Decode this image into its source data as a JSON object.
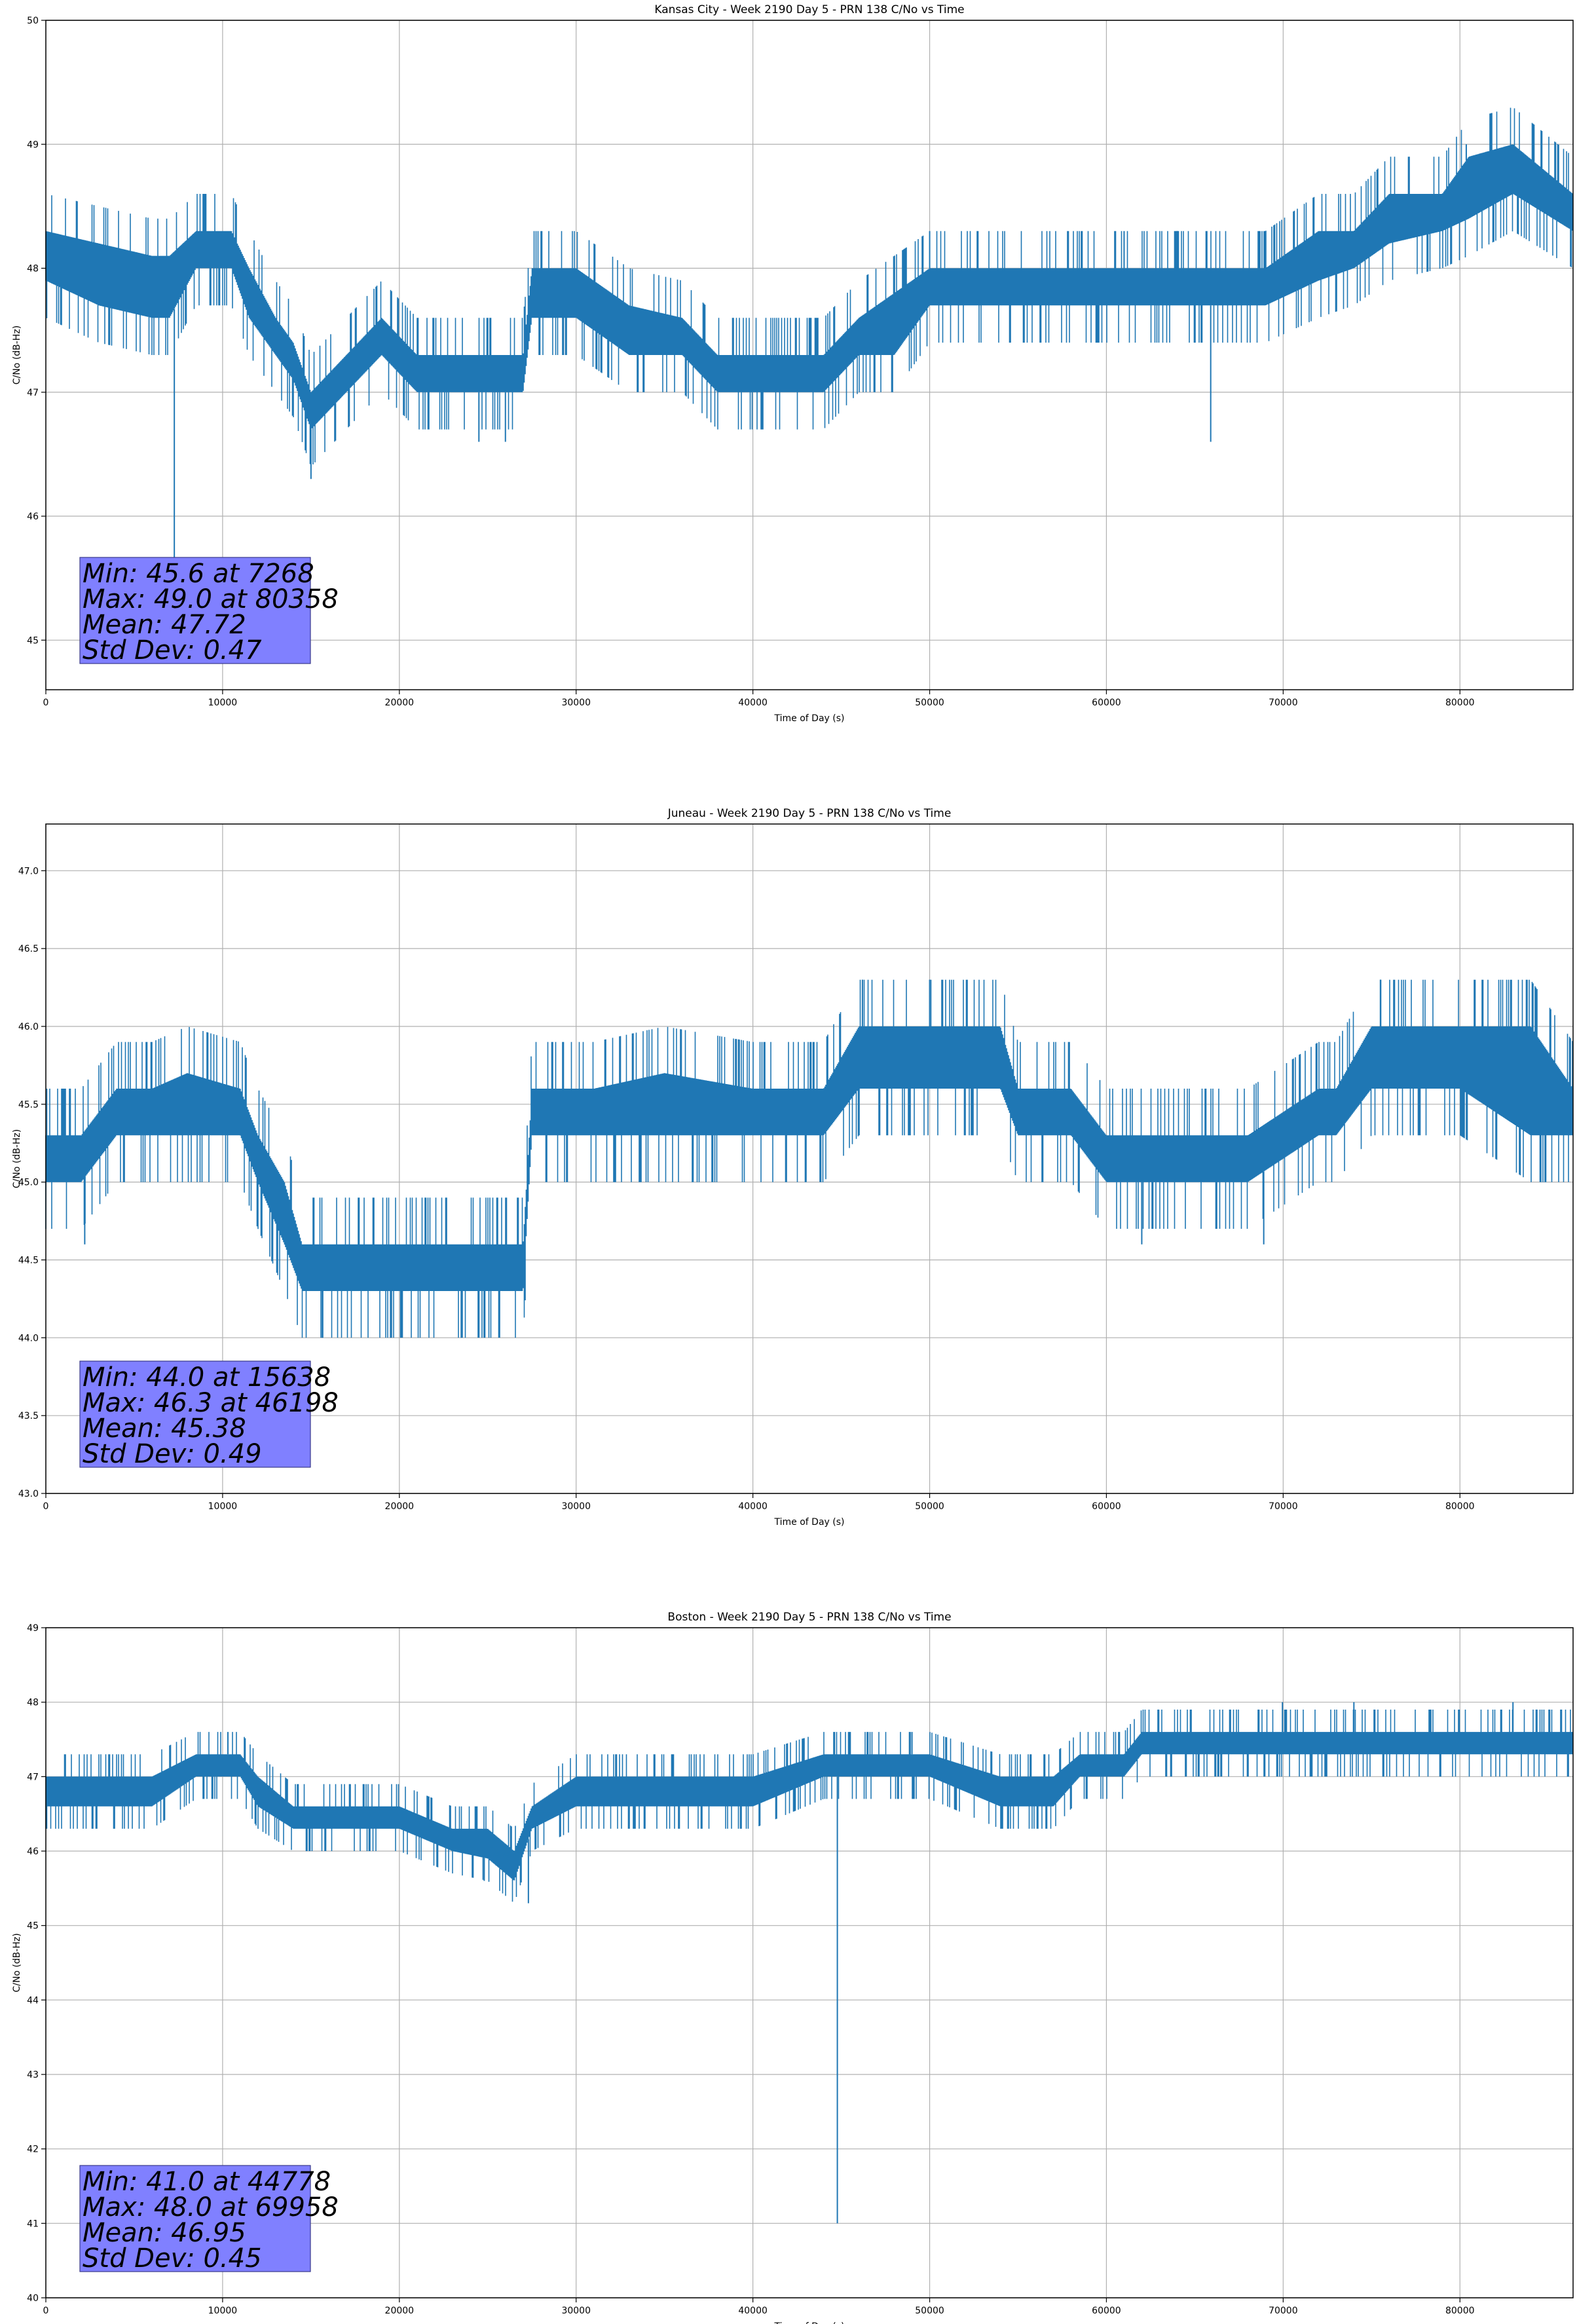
{
  "chart_data": [
    {
      "type": "line",
      "title": "Kansas City - Week 2190 Day 5 - PRN 138 C/No vs Time",
      "xlabel": "Time of Day (s)",
      "ylabel": "C/No (dB-Hz)",
      "xlim": [
        0,
        86400
      ],
      "ylim": [
        44.6,
        50
      ],
      "xticks": [
        0,
        10000,
        20000,
        30000,
        40000,
        50000,
        60000,
        70000,
        80000
      ],
      "yticks": [
        45,
        46,
        47,
        48,
        49,
        50
      ],
      "ytick_labels": [
        "45",
        "46",
        "47",
        "48",
        "49",
        "50"
      ],
      "grid": true,
      "color": "#1f77b4",
      "series": [
        {
          "x": [
            0,
            3000,
            6000,
            7000,
            8500,
            10500,
            11500,
            13000,
            14000,
            15000,
            17000,
            19000,
            21000,
            23000,
            25000,
            27000,
            27500,
            30000,
            33000,
            36000,
            38000,
            42000,
            44000,
            46000,
            48000,
            50000,
            55000,
            60000,
            65000,
            69000,
            72000,
            74000,
            76000,
            79000,
            80500,
            83000,
            86400
          ],
          "y_low": [
            47.9,
            47.7,
            47.6,
            47.6,
            48.0,
            48.0,
            47.6,
            47.3,
            47.1,
            46.7,
            47.0,
            47.3,
            47.0,
            47.0,
            47.0,
            47.0,
            47.6,
            47.6,
            47.3,
            47.3,
            47.0,
            47.0,
            47.0,
            47.3,
            47.3,
            47.7,
            47.7,
            47.7,
            47.7,
            47.7,
            47.9,
            48.0,
            48.2,
            48.3,
            48.4,
            48.6,
            48.3
          ],
          "y_high": [
            48.3,
            48.2,
            48.1,
            48.1,
            48.3,
            48.3,
            48.0,
            47.6,
            47.4,
            47.0,
            47.3,
            47.6,
            47.3,
            47.3,
            47.3,
            47.3,
            48.0,
            48.0,
            47.7,
            47.6,
            47.3,
            47.3,
            47.3,
            47.6,
            47.8,
            48.0,
            48.0,
            48.0,
            48.0,
            48.0,
            48.3,
            48.3,
            48.6,
            48.6,
            48.9,
            49.0,
            48.6
          ],
          "spikes": [
            {
              "x": 7268,
              "y": 45.6
            },
            {
              "x": 15000,
              "y": 46.3
            },
            {
              "x": 65900,
              "y": 46.6
            },
            {
              "x": 24500,
              "y": 46.6
            },
            {
              "x": 26000,
              "y": 46.6
            },
            {
              "x": 50000,
              "y": 48.3
            },
            {
              "x": 80358,
              "y": 49.0
            },
            {
              "x": 61000,
              "y": 48.3
            },
            {
              "x": 64000,
              "y": 48.3
            }
          ]
        }
      ],
      "stats": [
        "Min: 45.6 at 7268",
        "Max: 49.0 at 80358",
        "Mean: 47.72",
        "Std Dev: 0.47"
      ]
    },
    {
      "type": "line",
      "title": "Juneau - Week 2190 Day 5 - PRN 138 C/No vs Time",
      "xlabel": "Time of Day (s)",
      "ylabel": "C/No (dB-Hz)",
      "xlim": [
        0,
        86400
      ],
      "ylim": [
        43.0,
        47.3
      ],
      "xticks": [
        0,
        10000,
        20000,
        30000,
        40000,
        50000,
        60000,
        70000,
        80000
      ],
      "yticks": [
        43.0,
        43.5,
        44.0,
        44.5,
        45.0,
        45.5,
        46.0,
        46.5,
        47.0
      ],
      "ytick_labels": [
        "43.0",
        "43.5",
        "44.0",
        "44.5",
        "45.0",
        "45.5",
        "46.0",
        "46.5",
        "47.0"
      ],
      "grid": true,
      "color": "#1f77b4",
      "series": [
        {
          "x": [
            0,
            2000,
            4000,
            6000,
            8000,
            11000,
            12000,
            13500,
            14500,
            16000,
            20000,
            24000,
            27000,
            27500,
            31000,
            35000,
            40000,
            44000,
            46000,
            50000,
            54000,
            55000,
            58000,
            60000,
            64000,
            68000,
            72000,
            73000,
            75000,
            80000,
            84000,
            86400
          ],
          "y_low": [
            45.0,
            45.0,
            45.3,
            45.3,
            45.3,
            45.3,
            45.0,
            44.6,
            44.3,
            44.3,
            44.3,
            44.3,
            44.3,
            45.3,
            45.3,
            45.3,
            45.3,
            45.3,
            45.6,
            45.6,
            45.6,
            45.3,
            45.3,
            45.0,
            45.0,
            45.0,
            45.3,
            45.3,
            45.6,
            45.6,
            45.3,
            45.3
          ],
          "y_high": [
            45.3,
            45.3,
            45.6,
            45.6,
            45.7,
            45.6,
            45.3,
            45.0,
            44.6,
            44.6,
            44.6,
            44.6,
            44.6,
            45.6,
            45.6,
            45.7,
            45.6,
            45.6,
            46.0,
            46.0,
            46.0,
            45.6,
            45.6,
            45.3,
            45.3,
            45.3,
            45.6,
            45.6,
            46.0,
            46.0,
            46.0,
            45.6
          ],
          "spikes": [
            {
              "x": 15638,
              "y": 44.0
            },
            {
              "x": 19500,
              "y": 44.0
            },
            {
              "x": 23500,
              "y": 44.0
            },
            {
              "x": 46198,
              "y": 46.3
            },
            {
              "x": 50000,
              "y": 46.3
            },
            {
              "x": 75500,
              "y": 46.3
            },
            {
              "x": 2200,
              "y": 44.6
            },
            {
              "x": 62000,
              "y": 44.6
            },
            {
              "x": 68900,
              "y": 44.6
            }
          ]
        }
      ],
      "stats": [
        "Min: 44.0 at 15638",
        "Max: 46.3 at 46198",
        "Mean: 45.38",
        "Std Dev: 0.49"
      ]
    },
    {
      "type": "line",
      "title": "Boston - Week 2190 Day 5 - PRN 138 C/No vs Time",
      "xlabel": "Time of Day (s)",
      "ylabel": "C/No (dB-Hz)",
      "xlim": [
        0,
        86400
      ],
      "ylim": [
        40,
        49
      ],
      "xticks": [
        0,
        10000,
        20000,
        30000,
        40000,
        50000,
        60000,
        70000,
        80000
      ],
      "yticks": [
        40,
        41,
        42,
        43,
        44,
        45,
        46,
        47,
        48,
        49
      ],
      "ytick_labels": [
        "40",
        "41",
        "42",
        "43",
        "44",
        "45",
        "46",
        "47",
        "48",
        "49"
      ],
      "grid": true,
      "color": "#1f77b4",
      "series": [
        {
          "x": [
            0,
            3000,
            6000,
            8500,
            11000,
            12000,
            14000,
            17000,
            20000,
            23000,
            25000,
            26500,
            27500,
            30000,
            35000,
            40000,
            44000,
            48000,
            50000,
            54000,
            57000,
            58500,
            61000,
            62000,
            65000,
            70000,
            75000,
            80000,
            84000,
            86400
          ],
          "y_low": [
            46.6,
            46.6,
            46.6,
            47.0,
            47.0,
            46.6,
            46.3,
            46.3,
            46.3,
            46.0,
            45.9,
            45.6,
            46.3,
            46.6,
            46.6,
            46.6,
            47.0,
            47.0,
            47.0,
            46.6,
            46.6,
            47.0,
            47.0,
            47.3,
            47.3,
            47.3,
            47.3,
            47.3,
            47.3,
            47.3
          ],
          "y_high": [
            47.0,
            47.0,
            47.0,
            47.3,
            47.3,
            47.0,
            46.6,
            46.6,
            46.6,
            46.3,
            46.3,
            46.0,
            46.6,
            47.0,
            47.0,
            47.0,
            47.3,
            47.3,
            47.3,
            47.0,
            47.0,
            47.3,
            47.3,
            47.6,
            47.6,
            47.6,
            47.6,
            47.6,
            47.6,
            47.6
          ],
          "spikes": [
            {
              "x": 44778,
              "y": 41.0
            },
            {
              "x": 27300,
              "y": 45.3
            },
            {
              "x": 69958,
              "y": 48.0
            },
            {
              "x": 10300,
              "y": 47.6
            },
            {
              "x": 49000,
              "y": 47.6
            },
            {
              "x": 74000,
              "y": 48.0
            },
            {
              "x": 83000,
              "y": 48.0
            },
            {
              "x": 24800,
              "y": 45.6
            }
          ]
        }
      ],
      "stats": [
        "Min: 41.0 at 44778",
        "Max: 48.0 at 69958",
        "Mean: 46.95",
        "Std Dev: 0.45"
      ]
    }
  ]
}
